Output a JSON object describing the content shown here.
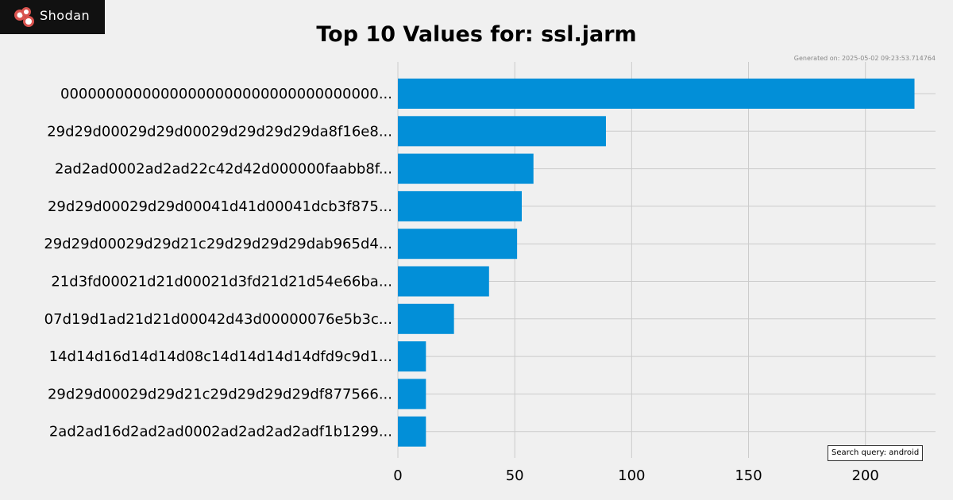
{
  "brand": {
    "name": "Shodan",
    "logo_icon": "shodan-logo-icon"
  },
  "generated_on": "Generated on: 2025-05-02 09:23:53.714764",
  "search_query": "Search query: android",
  "colors": {
    "bar": "#028fd8",
    "background": "#f0f0f0",
    "grid": "#cbcbcb"
  },
  "chart_data": {
    "type": "bar",
    "orientation": "horizontal",
    "title": "Top 10 Values for: ssl.jarm",
    "categories": [
      "00000000000000000000000000000000000...",
      "29d29d00029d29d00029d29d29d29da8f16e8...",
      "2ad2ad0002ad2ad22c42d42d000000faabb8f...",
      "29d29d00029d29d00041d41d00041dcb3f875...",
      "29d29d00029d29d21c29d29d29d29dab965d4...",
      "21d3fd00021d21d00021d3fd21d21d54e66ba...",
      "07d19d1ad21d21d00042d43d00000076e5b3c...",
      "14d14d16d14d14d08c14d14d14d14dfd9c9d1...",
      "29d29d00029d29d21c29d29d29d29df877566...",
      "2ad2ad16d2ad2ad0002ad2ad2ad2adf1b1299..."
    ],
    "values": [
      221,
      89,
      58,
      53,
      51,
      39,
      24,
      12,
      12,
      12
    ],
    "xlim": [
      0,
      230
    ],
    "xticks": [
      0,
      50,
      100,
      150,
      200
    ],
    "xlabel": "",
    "ylabel": "",
    "grid": true,
    "legend": "none"
  }
}
